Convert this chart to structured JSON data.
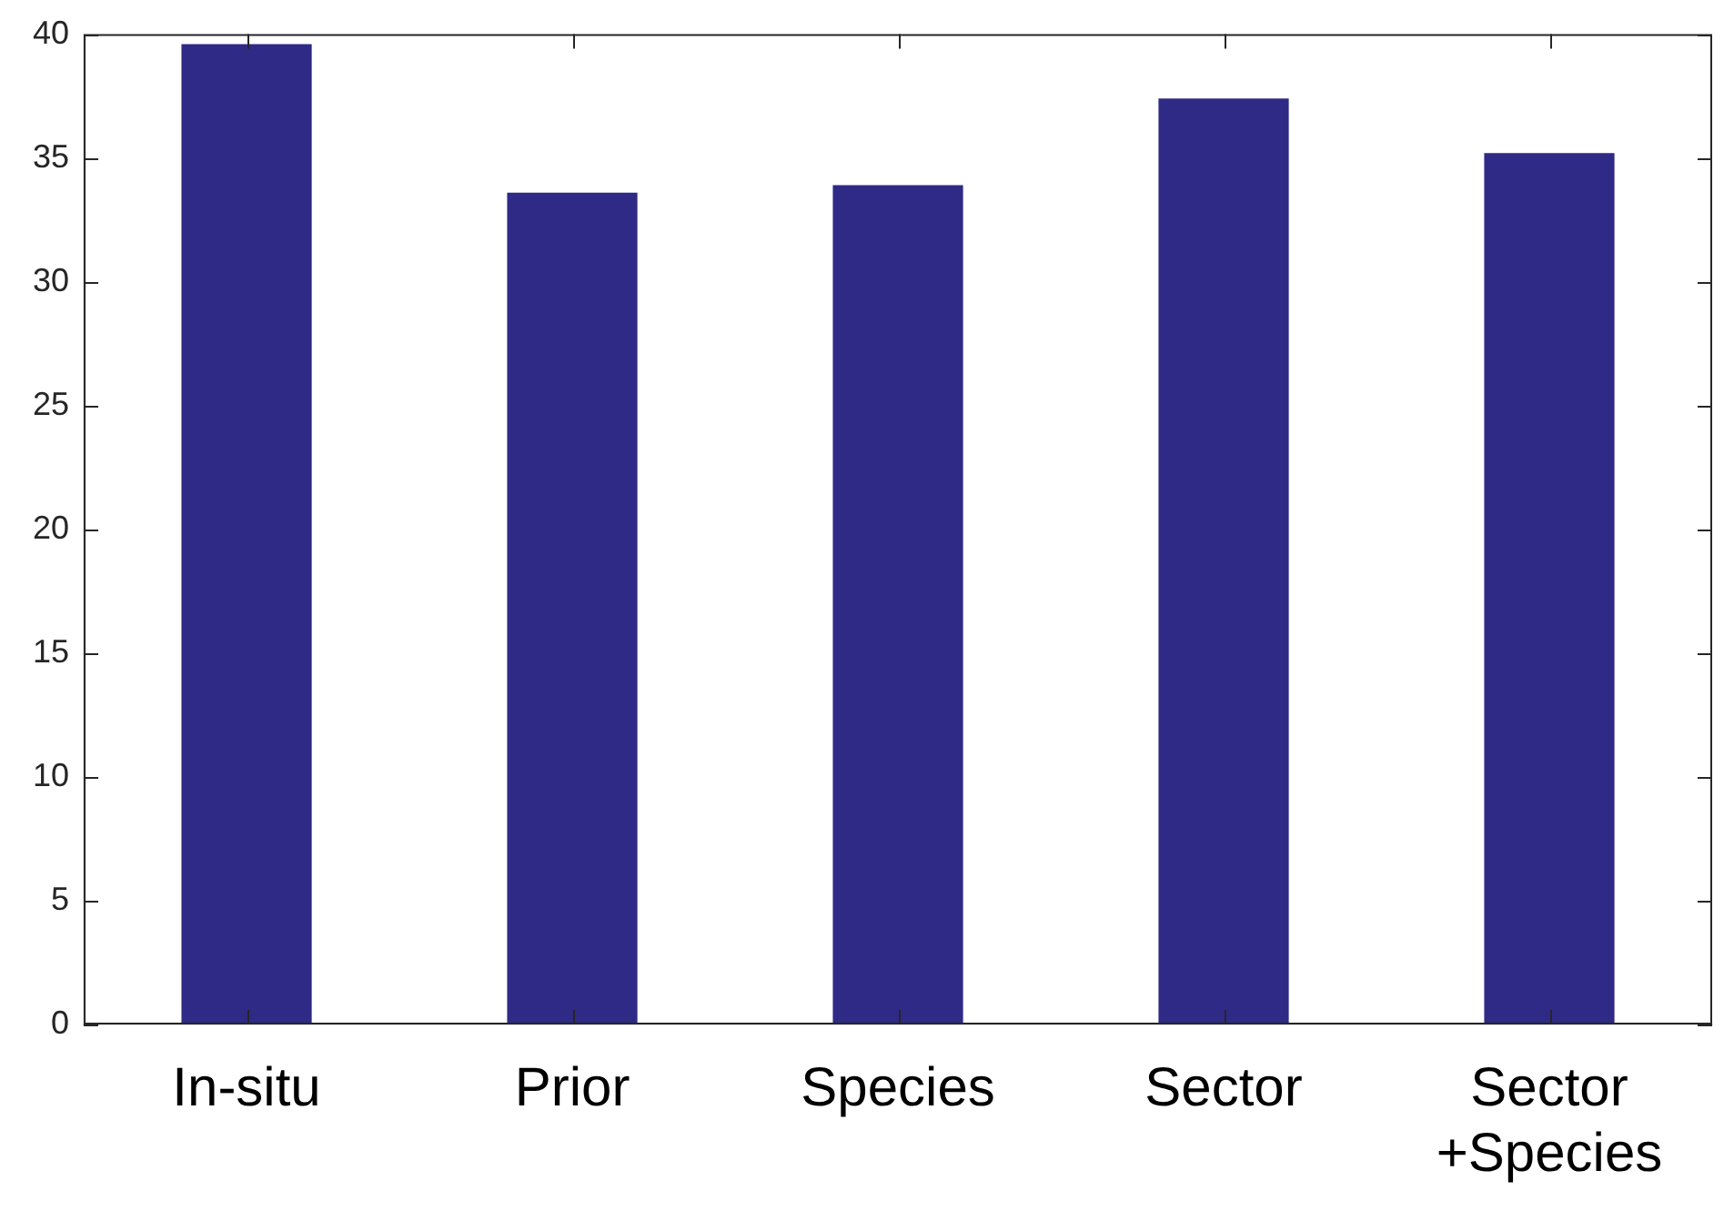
{
  "chart_data": {
    "type": "bar",
    "categories": [
      "In-situ",
      "Prior",
      "Species",
      "Sector",
      "Sector +Species"
    ],
    "values": [
      39.6,
      33.6,
      33.9,
      37.4,
      35.2
    ],
    "color": "#2f2a85",
    "ylim": [
      0,
      40
    ],
    "yticks": [
      0,
      5,
      10,
      15,
      20,
      25,
      30,
      35,
      40
    ],
    "grid": false,
    "legend": false
  }
}
